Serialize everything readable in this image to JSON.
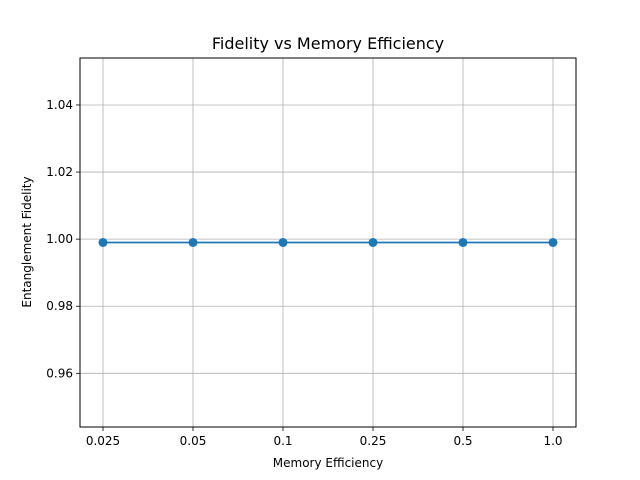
{
  "chart_data": {
    "type": "line",
    "title": "Fidelity vs Memory Efficiency",
    "xlabel": "Memory Efficiency",
    "ylabel": "Entanglement Fidelity",
    "categories": [
      "0.025",
      "0.05",
      "0.1",
      "0.25",
      "0.5",
      "1.0"
    ],
    "series": [
      {
        "values": [
          0.999,
          0.999,
          0.999,
          0.999,
          0.999,
          0.999
        ],
        "color": "#1f77b4",
        "marker": "circle"
      }
    ],
    "ylim": [
      0.944,
      1.054
    ],
    "yticks": [
      0.96,
      0.98,
      1.0,
      1.02,
      1.04
    ],
    "ytick_labels": [
      "0.96",
      "0.98",
      "1.00",
      "1.02",
      "1.04"
    ],
    "grid": true,
    "legend": "none"
  }
}
